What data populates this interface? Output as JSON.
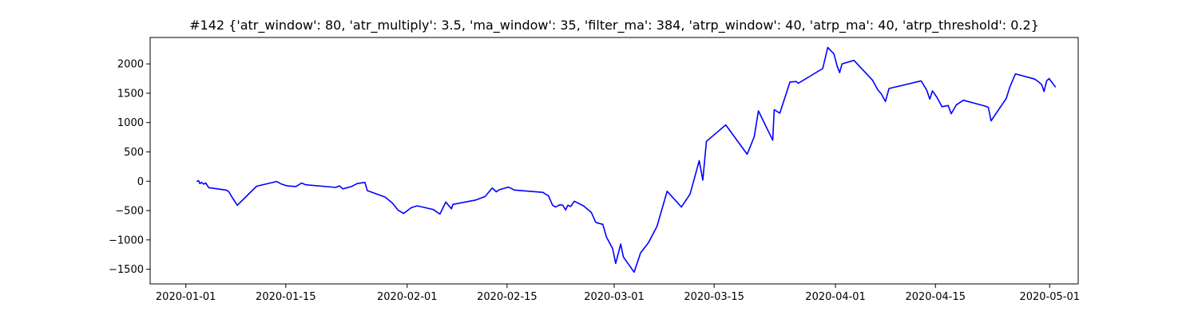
{
  "chart_data": {
    "type": "line",
    "title": "#142 {'atr_window': 80, 'atr_multiply': 3.5, 'ma_window': 35, 'filter_ma': 384, 'atrp_window': 40, 'atrp_ma': 40, 'atrp_threshold': 0.2}",
    "xlabel": "",
    "ylabel": "",
    "xlim": [
      "2019-12-27",
      "2020-05-05"
    ],
    "ylim": [
      -1750,
      2450
    ],
    "x_ticks": [
      {
        "date": "2020-01-01",
        "label": "2020-01-01"
      },
      {
        "date": "2020-01-15",
        "label": "2020-01-15"
      },
      {
        "date": "2020-02-01",
        "label": "2020-02-01"
      },
      {
        "date": "2020-02-15",
        "label": "2020-02-15"
      },
      {
        "date": "2020-03-01",
        "label": "2020-03-01"
      },
      {
        "date": "2020-03-15",
        "label": "2020-03-15"
      },
      {
        "date": "2020-04-01",
        "label": "2020-04-01"
      },
      {
        "date": "2020-04-15",
        "label": "2020-04-15"
      },
      {
        "date": "2020-05-01",
        "label": "2020-05-01"
      }
    ],
    "y_ticks": [
      {
        "value": 2000,
        "label": "2000"
      },
      {
        "value": 1500,
        "label": "1500"
      },
      {
        "value": 1000,
        "label": "1000"
      },
      {
        "value": 500,
        "label": "500"
      },
      {
        "value": 0,
        "label": "0"
      },
      {
        "value": -500,
        "label": "−500"
      },
      {
        "value": -1000,
        "label": "−1000"
      },
      {
        "value": -1500,
        "label": "−1500"
      }
    ],
    "grid": false,
    "series": [
      {
        "color": "#0000ff",
        "points": [
          [
            "2020-01-02T14:00",
            0
          ],
          [
            "2020-01-02T19:00",
            10
          ],
          [
            "2020-01-02T23:00",
            -40
          ],
          [
            "2020-01-03T05:00",
            -20
          ],
          [
            "2020-01-03T12:00",
            -50
          ],
          [
            "2020-01-03T19:00",
            -30
          ],
          [
            "2020-01-04T05:00",
            -110
          ],
          [
            "2020-01-06T15:00",
            -150
          ],
          [
            "2020-01-07T00:00",
            -175
          ],
          [
            "2020-01-07T10:00",
            -260
          ],
          [
            "2020-01-08T05:00",
            -410
          ],
          [
            "2020-01-10T22:00",
            -85
          ],
          [
            "2020-01-13T17:00",
            -5
          ],
          [
            "2020-01-14T10:00",
            -50
          ],
          [
            "2020-01-15T05:00",
            -80
          ],
          [
            "2020-01-16T10:00",
            -90
          ],
          [
            "2020-01-17T05:00",
            -30
          ],
          [
            "2020-01-17T19:00",
            -60
          ],
          [
            "2020-01-22T00:00",
            -105
          ],
          [
            "2020-01-22T12:00",
            -80
          ],
          [
            "2020-01-23T00:00",
            -130
          ],
          [
            "2020-01-24T05:00",
            -90
          ],
          [
            "2020-01-25T00:00",
            -40
          ],
          [
            "2020-01-26T02:00",
            -20
          ],
          [
            "2020-01-26T10:00",
            -160
          ],
          [
            "2020-01-28T22:00",
            -270
          ],
          [
            "2020-01-29T22:00",
            -370
          ],
          [
            "2020-01-30T17:00",
            -490
          ],
          [
            "2020-01-31T12:00",
            -550
          ],
          [
            "2020-02-01T14:00",
            -450
          ],
          [
            "2020-02-02T10:00",
            -420
          ],
          [
            "2020-02-04T15:00",
            -480
          ],
          [
            "2020-02-05T14:00",
            -560
          ],
          [
            "2020-02-06T10:00",
            -355
          ],
          [
            "2020-02-07T05:00",
            -470
          ],
          [
            "2020-02-07T10:00",
            -395
          ],
          [
            "2020-02-10T15:00",
            -320
          ],
          [
            "2020-02-11T22:00",
            -260
          ],
          [
            "2020-02-12T22:00",
            -115
          ],
          [
            "2020-02-13T12:00",
            -180
          ],
          [
            "2020-02-13T22:00",
            -145
          ],
          [
            "2020-02-15T05:00",
            -100
          ],
          [
            "2020-02-16T00:00",
            -150
          ],
          [
            "2020-02-20T00:00",
            -190
          ],
          [
            "2020-02-20T19:00",
            -250
          ],
          [
            "2020-02-21T09:00",
            -410
          ],
          [
            "2020-02-21T19:00",
            -440
          ],
          [
            "2020-02-22T10:00",
            -400
          ],
          [
            "2020-02-22T19:00",
            -410
          ],
          [
            "2020-02-23T05:00",
            -490
          ],
          [
            "2020-02-23T12:00",
            -410
          ],
          [
            "2020-02-23T22:00",
            -430
          ],
          [
            "2020-02-24T10:00",
            -340
          ],
          [
            "2020-02-25T17:00",
            -420
          ],
          [
            "2020-02-26T19:00",
            -530
          ],
          [
            "2020-02-27T10:00",
            -700
          ],
          [
            "2020-02-27T22:00",
            -720
          ],
          [
            "2020-02-28T10:00",
            -735
          ],
          [
            "2020-02-28T22:00",
            -950
          ],
          [
            "2020-02-29T19:00",
            -1150
          ],
          [
            "2020-03-01T05:00",
            -1400
          ],
          [
            "2020-03-01T22:00",
            -1070
          ],
          [
            "2020-03-02T07:00",
            -1290
          ],
          [
            "2020-03-03T19:00",
            -1550
          ],
          [
            "2020-03-04T17:00",
            -1220
          ],
          [
            "2020-03-05T19:00",
            -1050
          ],
          [
            "2020-03-07T00:00",
            -770
          ],
          [
            "2020-03-08T10:00",
            -170
          ],
          [
            "2020-03-10T10:00",
            -440
          ],
          [
            "2020-03-11T15:00",
            -220
          ],
          [
            "2020-03-12T22:00",
            350
          ],
          [
            "2020-03-13T10:00",
            20
          ],
          [
            "2020-03-13T22:00",
            680
          ],
          [
            "2020-03-16T15:00",
            960
          ],
          [
            "2020-03-19T15:00",
            460
          ],
          [
            "2020-03-20T15:00",
            760
          ],
          [
            "2020-03-21T05:00",
            1200
          ],
          [
            "2020-03-23T05:00",
            700
          ],
          [
            "2020-03-23T10:00",
            1220
          ],
          [
            "2020-03-24T05:00",
            1160
          ],
          [
            "2020-03-25T15:00",
            1690
          ],
          [
            "2020-03-26T12:00",
            1700
          ],
          [
            "2020-03-26T19:00",
            1670
          ],
          [
            "2020-03-30T05:00",
            1920
          ],
          [
            "2020-03-30T22:00",
            2280
          ],
          [
            "2020-03-31T19:00",
            2170
          ],
          [
            "2020-04-01T05:00",
            1970
          ],
          [
            "2020-04-01T14:00",
            1850
          ],
          [
            "2020-04-01T22:00",
            2000
          ],
          [
            "2020-04-03T14:00",
            2060
          ],
          [
            "2020-04-06T05:00",
            1720
          ],
          [
            "2020-04-06T22:00",
            1560
          ],
          [
            "2020-04-07T10:00",
            1490
          ],
          [
            "2020-04-08T00:00",
            1360
          ],
          [
            "2020-04-08T12:00",
            1580
          ],
          [
            "2020-04-13T00:00",
            1710
          ],
          [
            "2020-04-13T19:00",
            1550
          ],
          [
            "2020-04-14T05:00",
            1400
          ],
          [
            "2020-04-14T14:00",
            1540
          ],
          [
            "2020-04-15T05:00",
            1430
          ],
          [
            "2020-04-15T22:00",
            1270
          ],
          [
            "2020-04-16T19:00",
            1290
          ],
          [
            "2020-04-17T05:00",
            1150
          ],
          [
            "2020-04-17T22:00",
            1300
          ],
          [
            "2020-04-18T22:00",
            1380
          ],
          [
            "2020-04-22T00:00",
            1280
          ],
          [
            "2020-04-22T10:00",
            1260
          ],
          [
            "2020-04-22T19:00",
            1030
          ],
          [
            "2020-04-24T22:00",
            1410
          ],
          [
            "2020-04-25T10:00",
            1600
          ],
          [
            "2020-04-26T05:00",
            1830
          ],
          [
            "2020-04-28T22:00",
            1740
          ],
          [
            "2020-04-29T12:00",
            1690
          ],
          [
            "2020-04-29T22:00",
            1640
          ],
          [
            "2020-04-30T05:00",
            1530
          ],
          [
            "2020-04-30T14:00",
            1710
          ],
          [
            "2020-04-30T22:00",
            1750
          ],
          [
            "2020-05-01T19:00",
            1610
          ]
        ]
      }
    ]
  }
}
